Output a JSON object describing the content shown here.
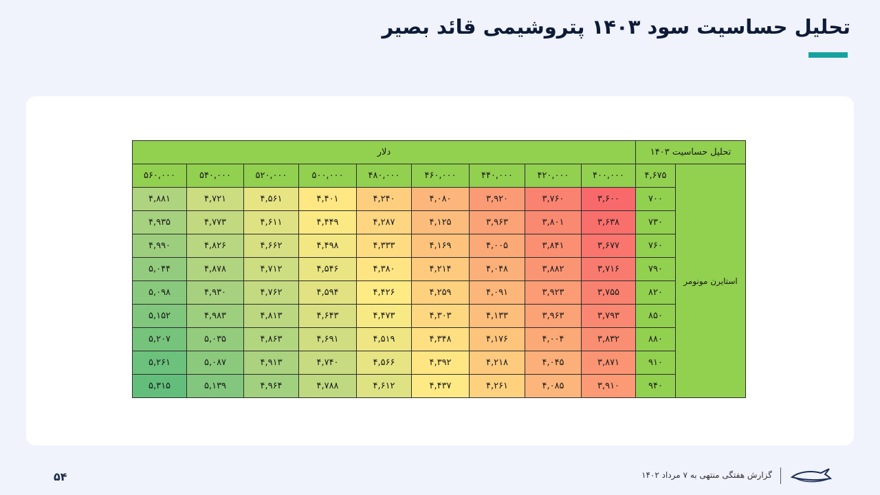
{
  "title": "تحلیل حساسیت سود ۱۴۰۳ پتروشیمی قائد بصیر",
  "table": {
    "title": "تحلیل حساسیت ۱۴۰۳",
    "currency_label": "دلار",
    "corner_value": "۴,۶۷۵",
    "row_header": "استایرن مونومر",
    "columns": [
      "۴۰۰,۰۰۰",
      "۴۲۰,۰۰۰",
      "۴۴۰,۰۰۰",
      "۴۶۰,۰۰۰",
      "۴۸۰,۰۰۰",
      "۵۰۰,۰۰۰",
      "۵۲۰,۰۰۰",
      "۵۴۰,۰۰۰",
      "۵۶۰,۰۰۰"
    ],
    "rows": [
      {
        "label": "۷۰۰",
        "values": [
          "۳,۶۰۰",
          "۳,۷۶۰",
          "۳,۹۲۰",
          "۴,۰۸۰",
          "۴,۲۴۰",
          "۴,۴۰۱",
          "۴,۵۶۱",
          "۴,۷۲۱",
          "۴,۸۸۱"
        ]
      },
      {
        "label": "۷۳۰",
        "values": [
          "۳,۶۳۸",
          "۳,۸۰۱",
          "۳,۹۶۳",
          "۴,۱۲۵",
          "۴,۲۸۷",
          "۴,۴۴۹",
          "۴,۶۱۱",
          "۴,۷۷۳",
          "۴,۹۳۵"
        ]
      },
      {
        "label": "۷۶۰",
        "values": [
          "۳,۶۷۷",
          "۳,۸۴۱",
          "۴,۰۰۵",
          "۴,۱۶۹",
          "۴,۳۳۳",
          "۴,۴۹۸",
          "۴,۶۶۲",
          "۴,۸۲۶",
          "۴,۹۹۰"
        ]
      },
      {
        "label": "۷۹۰",
        "values": [
          "۳,۷۱۶",
          "۳,۸۸۲",
          "۴,۰۴۸",
          "۴,۲۱۴",
          "۴,۳۸۰",
          "۴,۵۴۶",
          "۴,۷۱۲",
          "۴,۸۷۸",
          "۵,۰۴۴"
        ]
      },
      {
        "label": "۸۲۰",
        "values": [
          "۳,۷۵۵",
          "۳,۹۲۳",
          "۴,۰۹۱",
          "۴,۲۵۹",
          "۴,۴۲۶",
          "۴,۵۹۴",
          "۴,۷۶۲",
          "۴,۹۳۰",
          "۵,۰۹۸"
        ]
      },
      {
        "label": "۸۵۰",
        "values": [
          "۳,۷۹۳",
          "۳,۹۶۳",
          "۴,۱۳۳",
          "۴,۳۰۳",
          "۴,۴۷۳",
          "۴,۶۴۳",
          "۴,۸۱۳",
          "۴,۹۸۳",
          "۵,۱۵۲"
        ]
      },
      {
        "label": "۸۸۰",
        "values": [
          "۳,۸۳۲",
          "۴,۰۰۴",
          "۴,۱۷۶",
          "۴,۳۴۸",
          "۴,۵۱۹",
          "۴,۶۹۱",
          "۴,۸۶۳",
          "۵,۰۳۵",
          "۵,۲۰۷"
        ]
      },
      {
        "label": "۹۱۰",
        "values": [
          "۳,۸۷۱",
          "۴,۰۴۵",
          "۴,۲۱۸",
          "۴,۳۹۲",
          "۴,۵۶۶",
          "۴,۷۴۰",
          "۴,۹۱۳",
          "۵,۰۸۷",
          "۵,۲۶۱"
        ]
      },
      {
        "label": "۹۴۰",
        "values": [
          "۳,۹۱۰",
          "۴,۰۸۵",
          "۴,۲۶۱",
          "۴,۴۳۷",
          "۴,۶۱۲",
          "۴,۷۸۸",
          "۴,۹۶۴",
          "۵,۱۳۹",
          "۵,۳۱۵"
        ]
      }
    ],
    "numeric_rows": [
      [
        3600,
        3760,
        3920,
        4080,
        4240,
        4401,
        4561,
        4721,
        4881
      ],
      [
        3638,
        3801,
        3963,
        4125,
        4287,
        4449,
        4611,
        4773,
        4935
      ],
      [
        3677,
        3841,
        4005,
        4169,
        4333,
        4498,
        4662,
        4826,
        4990
      ],
      [
        3716,
        3882,
        4048,
        4214,
        4380,
        4546,
        4712,
        4878,
        5044
      ],
      [
        3755,
        3923,
        4091,
        4259,
        4426,
        4594,
        4762,
        4930,
        5098
      ],
      [
        3793,
        3963,
        4133,
        4303,
        4473,
        4643,
        4813,
        4983,
        5152
      ],
      [
        3832,
        4004,
        4176,
        4348,
        4519,
        4691,
        4863,
        5035,
        5207
      ],
      [
        3871,
        4045,
        4218,
        4392,
        4566,
        4740,
        4913,
        5087,
        5261
      ],
      [
        3910,
        4085,
        4261,
        4437,
        4612,
        4788,
        4964,
        5139,
        5315
      ]
    ],
    "scale_colors": {
      "low": "#f8696b",
      "mid": "#ffeb84",
      "high": "#63be7b"
    },
    "header_color": "#92d050"
  },
  "footer": {
    "page_number": "۵۴",
    "report_text": "گزارش هفتگی منتهی به ۷ مرداد ۱۴۰۲"
  },
  "colors": {
    "accent_bar": "#17a2a0",
    "title": "#0d1b36"
  }
}
